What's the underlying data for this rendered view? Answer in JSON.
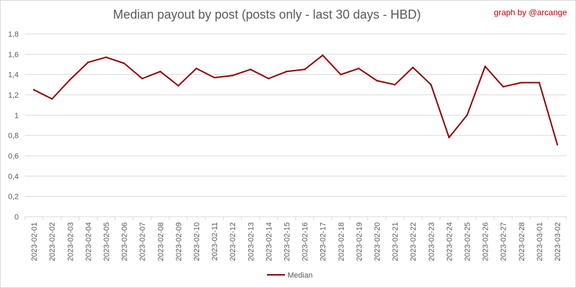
{
  "header": {
    "title": "Median payout by post (posts only - last 30 days - HBD)",
    "credit": "graph by @arcange"
  },
  "chart_data": {
    "type": "line",
    "title": "Median payout by post (posts only - last 30 days - HBD)",
    "xlabel": "",
    "ylabel": "",
    "ylim": [
      0,
      1.8
    ],
    "y_ticks": [
      "0",
      "0,2",
      "0,4",
      "0,6",
      "0,8",
      "1",
      "1,2",
      "1,4",
      "1,6",
      "1,8"
    ],
    "y_tick_values": [
      0,
      0.2,
      0.4,
      0.6,
      0.8,
      1.0,
      1.2,
      1.4,
      1.6,
      1.8
    ],
    "grid": true,
    "legend_position": "bottom",
    "categories": [
      "2023-02-01",
      "2023-02-02",
      "2023-02-03",
      "2023-02-04",
      "2023-02-05",
      "2023-02-06",
      "2023-02-07",
      "2023-02-08",
      "2023-02-09",
      "2023-02-10",
      "2023-02-11",
      "2023-02-12",
      "2023-02-13",
      "2023-02-14",
      "2023-02-15",
      "2023-02-16",
      "2023-02-17",
      "2023-02-18",
      "2023-02-19",
      "2023-02-20",
      "2023-02-21",
      "2023-02-22",
      "2023-02-23",
      "2023-02-24",
      "2023-02-25",
      "2023-02-26",
      "2023-02-27",
      "2023-02-28",
      "2023-03-01",
      "2023-03-02"
    ],
    "series": [
      {
        "name": "Median",
        "color": "#8b0000",
        "values": [
          1.25,
          1.16,
          1.35,
          1.52,
          1.57,
          1.51,
          1.36,
          1.43,
          1.29,
          1.46,
          1.37,
          1.39,
          1.45,
          1.36,
          1.43,
          1.45,
          1.59,
          1.4,
          1.46,
          1.34,
          1.3,
          1.47,
          1.3,
          0.78,
          1.0,
          1.48,
          1.28,
          1.32,
          1.32,
          0.71
        ]
      }
    ]
  }
}
